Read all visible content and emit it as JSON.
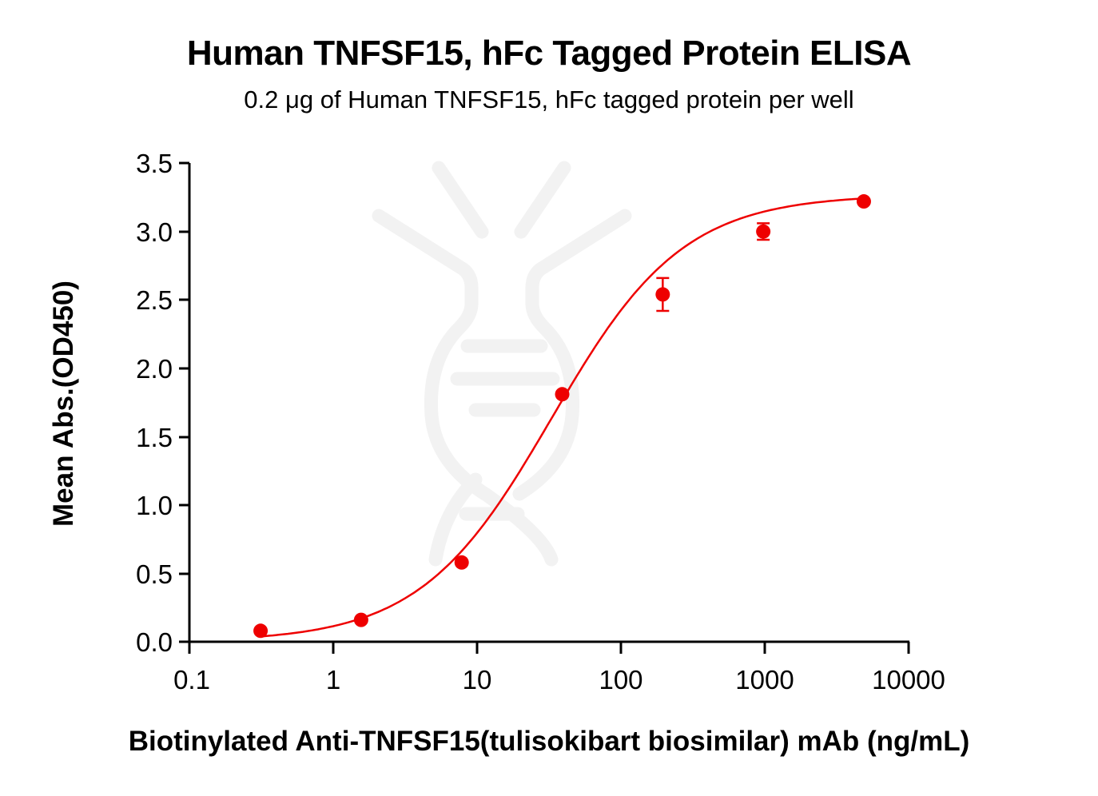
{
  "chart_data": {
    "type": "scatter",
    "title": "Human TNFSF15, hFc Tagged Protein ELISA",
    "subtitle": "0.2 μg of Human TNFSF15, hFc tagged protein per well",
    "xlabel": "Biotinylated Anti-TNFSF15(tulisokibart biosimilar) mAb (ng/mL)",
    "ylabel": "Mean Abs.(OD450)",
    "xscale": "log",
    "xlim": [
      0.1,
      10000
    ],
    "ylim": [
      0.0,
      3.5
    ],
    "x_ticks": [
      "0.1",
      "1",
      "10",
      "100",
      "1000",
      "10000"
    ],
    "y_ticks": [
      "0.0",
      "0.5",
      "1.0",
      "1.5",
      "2.0",
      "2.5",
      "3.0",
      "3.5"
    ],
    "grid": false,
    "legend": null,
    "series": [
      {
        "name": "Human TNFSF15, hFc",
        "color": "#ee0000",
        "marker": "circle",
        "fit": "4PL sigmoid",
        "x": [
          0.3125,
          1.5625,
          7.8125,
          39.0625,
          195.3125,
          976.5625,
          4882.8125
        ],
        "y": [
          0.08,
          0.16,
          0.58,
          1.81,
          2.54,
          3.0,
          3.22
        ],
        "error": [
          0.0,
          0.0,
          0.0,
          0.0,
          0.12,
          0.06,
          0.0
        ]
      }
    ]
  },
  "watermark": {
    "icon": "dna-antibody-logo",
    "color": "#f2f2f2"
  }
}
